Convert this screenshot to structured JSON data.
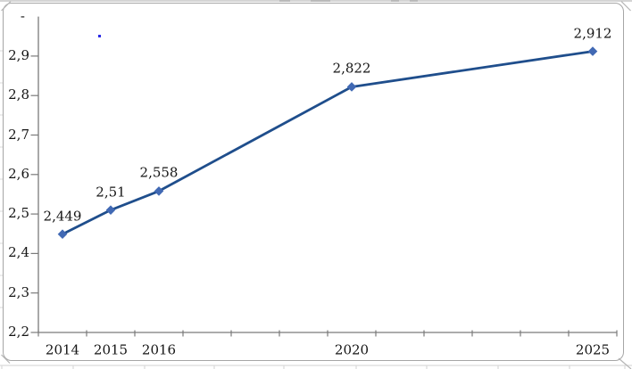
{
  "window": {
    "background": "#ffffff"
  },
  "chart_data": {
    "type": "line",
    "title": "",
    "x": [
      2014,
      2015,
      2016,
      2020,
      2025
    ],
    "x_labels": [
      "2014",
      "2015",
      "2016",
      "2020",
      "2025"
    ],
    "series": [
      {
        "name": "",
        "values": [
          2.449,
          2.51,
          2.558,
          2.822,
          2.912
        ]
      }
    ],
    "data_labels": [
      "2,449",
      "2,51",
      "2,558",
      "2,822",
      "2,912"
    ],
    "y_axis": {
      "min": 2.2,
      "max": 3.0,
      "tick_step": 0.1,
      "tick_labels": [
        "2,2",
        "2,3",
        "2,4",
        "2,5",
        "2,6",
        "2,7",
        "2,8",
        "2,9"
      ],
      "top_label": "-"
    },
    "x_axis": {
      "min": 2014,
      "max": 2026,
      "tick_every_year": true
    },
    "grid": false,
    "legend": false,
    "marker": "diamond",
    "colors": {
      "line": "#1f4e8c",
      "marker": "#4169b4",
      "label_text": "#151515",
      "axis": "#7a7a7a",
      "frame_border": "#a6a6a6",
      "worksheet_grid": "#d9d9d9",
      "corner_mark": "#b5b5b5",
      "stray_dot": "#2a2ae6"
    }
  }
}
